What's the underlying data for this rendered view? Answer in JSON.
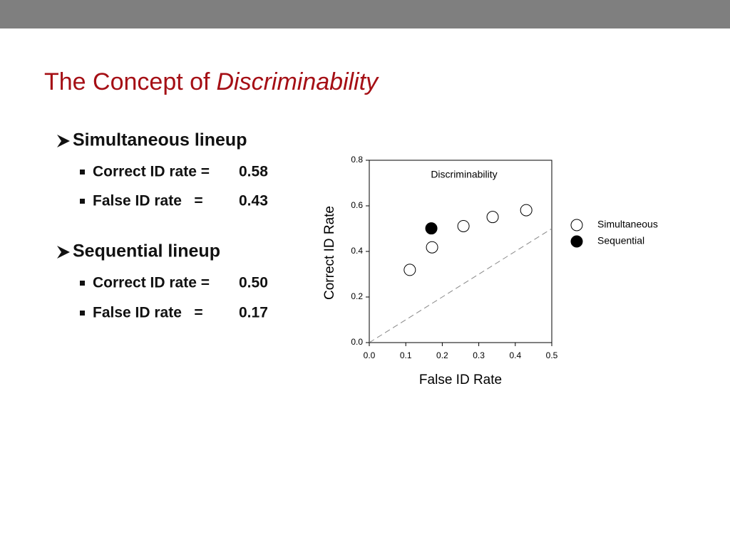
{
  "header": {
    "title": "The Concept of",
    "title_emphasis": "Discriminability"
  },
  "bullets": [
    {
      "text": "Simultaneous lineup",
      "items": [
        {
          "label": "Correct ID rate =",
          "value": "0.58"
        },
        {
          "label": "False ID rate   =",
          "value": "0.43"
        }
      ]
    },
    {
      "text": "Sequential lineup",
      "items": [
        {
          "label": "Correct ID rate =",
          "value": "0.50"
        },
        {
          "label": "False ID rate   =",
          "value": "0.17"
        }
      ]
    }
  ],
  "chart_data": {
    "type": "scatter",
    "title": "Discriminability",
    "x_label": "False ID Rate",
    "y_label": "Correct ID Rate",
    "xlim": [
      0,
      0.5
    ],
    "ylim": [
      0,
      0.8
    ],
    "xticks": [
      {
        "value": 0,
        "label": "0.0"
      },
      0.1,
      0.2,
      0.3,
      0.4,
      0.5
    ],
    "yticks": [
      {
        "value": 0,
        "label": "0.0"
      },
      0.2,
      0.4,
      0.6,
      0.8
    ],
    "legend": "right",
    "series": [
      {
        "name": "Simultaneous",
        "color": "#000000",
        "fill": "#ffffff",
        "x": [
          0.111,
          0.172,
          0.258,
          0.338,
          0.43
        ],
        "values": [
          0.319,
          0.418,
          0.511,
          0.551,
          0.581
        ]
      },
      {
        "name": "Sequential",
        "color": "#000000",
        "fill": "#000000",
        "x": [
          0.17
        ],
        "values": [
          0.501
        ]
      }
    ]
  }
}
